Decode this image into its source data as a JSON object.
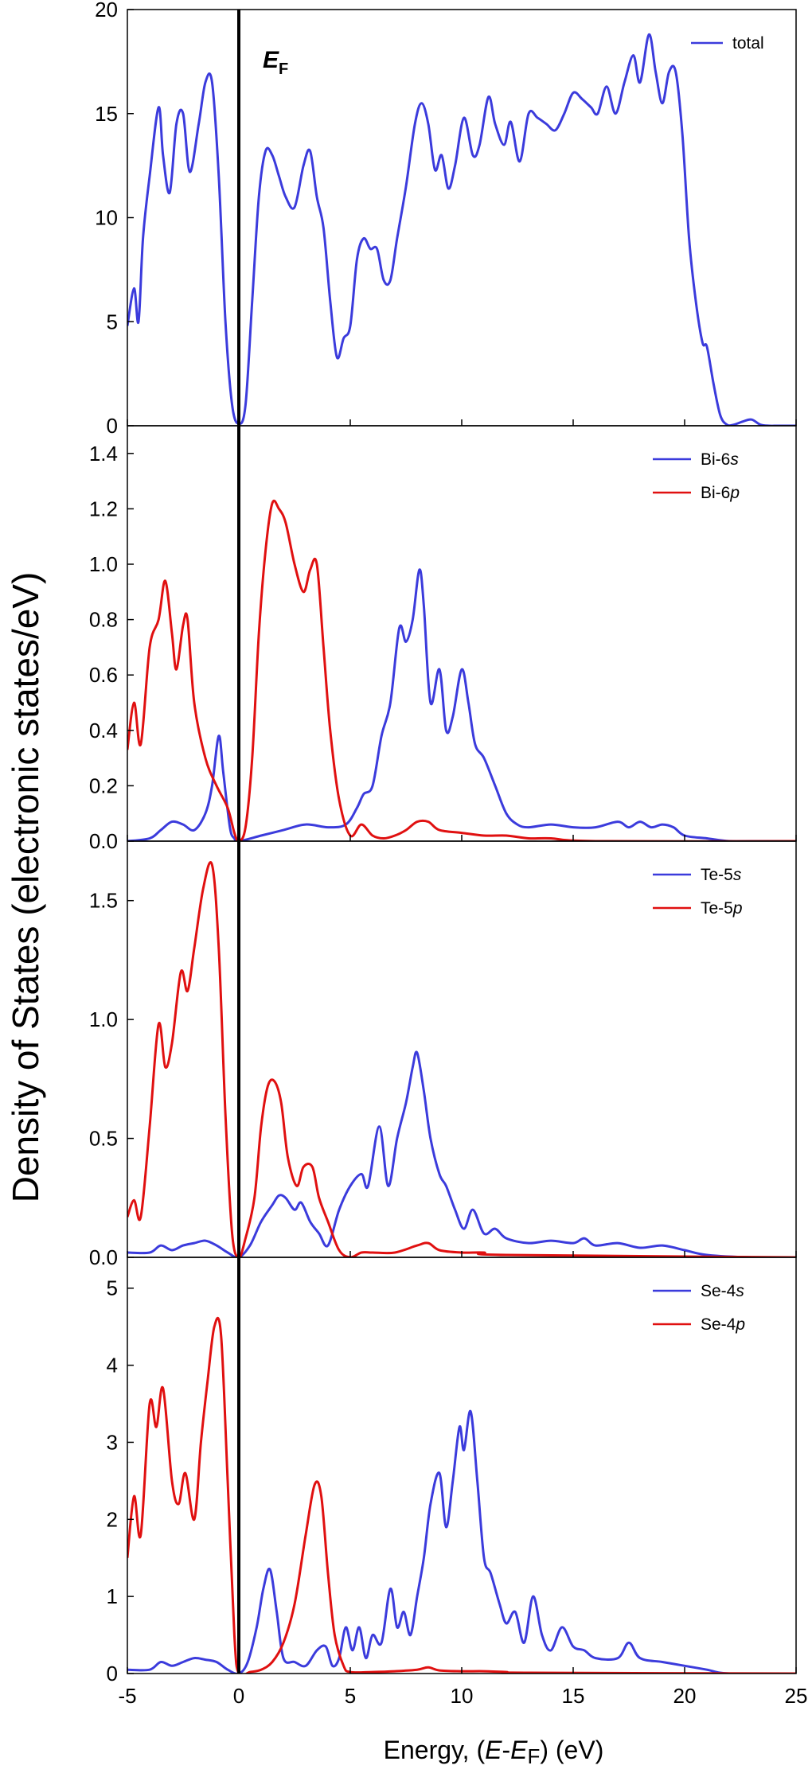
{
  "figure": {
    "ylabel": "Density of States (electronic states/eV)",
    "xlabel_parts": [
      "Energy, (",
      "E",
      "-",
      "E",
      "F",
      ") (eV)"
    ],
    "fermi_label": [
      "E",
      "F"
    ],
    "x_ticks": [
      "-5",
      "0",
      "5",
      "10",
      "15",
      "20",
      "25"
    ],
    "colors": {
      "blue": "#3b3bdc",
      "red": "#e01010",
      "axis": "#000000"
    }
  },
  "chart_data": [
    {
      "type": "line",
      "panel": "total",
      "xlim": [
        -5,
        25
      ],
      "ylim": [
        0,
        20
      ],
      "y_ticks": [
        "0",
        "5",
        "10",
        "15",
        "20"
      ],
      "legend_placement": "top-right",
      "series": [
        {
          "name": "total",
          "legend_label": [
            "total"
          ],
          "color": "#3b3bdc",
          "x": [
            -5,
            -4.7,
            -4.5,
            -4.3,
            -4,
            -3.6,
            -3.4,
            -3.1,
            -2.8,
            -2.5,
            -2.2,
            -1.8,
            -1.5,
            -1.2,
            -0.9,
            -0.6,
            -0.3,
            0,
            0.3,
            0.6,
            0.9,
            1.2,
            1.5,
            1.8,
            2.1,
            2.5,
            2.9,
            3.2,
            3.5,
            3.8,
            4.1,
            4.4,
            4.7,
            5,
            5.3,
            5.6,
            5.9,
            6.2,
            6.5,
            6.8,
            7.1,
            7.5,
            7.9,
            8.2,
            8.5,
            8.8,
            9.1,
            9.4,
            9.7,
            10.1,
            10.5,
            10.8,
            11.2,
            11.5,
            11.9,
            12.2,
            12.6,
            13,
            13.4,
            13.8,
            14.2,
            14.6,
            15,
            15.4,
            15.8,
            16.1,
            16.5,
            16.9,
            17.3,
            17.7,
            18,
            18.4,
            18.7,
            19,
            19.3,
            19.6,
            19.9,
            20.2,
            20.5,
            20.8,
            21,
            21.3,
            21.6,
            21.9,
            22.2,
            22.6,
            23,
            23.4,
            23.8,
            24.2,
            25
          ],
          "values": [
            4.8,
            6.6,
            5,
            9,
            12,
            15.3,
            13,
            11.2,
            14.5,
            15,
            12.2,
            14.5,
            16.5,
            16.5,
            12,
            5,
            1,
            0.1,
            1,
            6,
            11,
            13.2,
            13,
            12,
            11,
            10.5,
            12.5,
            13.2,
            11,
            9.5,
            6,
            3.3,
            4.2,
            4.8,
            8,
            9,
            8.5,
            8.5,
            7,
            7,
            9,
            11.5,
            14.5,
            15.5,
            14.5,
            12.3,
            13,
            11.4,
            12.5,
            14.8,
            13,
            13.5,
            15.8,
            14.5,
            13.5,
            14.6,
            12.7,
            15,
            14.8,
            14.5,
            14.2,
            15,
            16,
            15.7,
            15.3,
            15,
            16.3,
            15,
            16.5,
            17.8,
            16.5,
            18.8,
            17,
            15.5,
            17,
            17,
            14,
            9,
            6,
            4,
            3.8,
            2,
            0.5,
            0.05,
            0.05,
            0.2,
            0.3,
            0.05,
            0,
            0,
            0
          ]
        }
      ]
    },
    {
      "type": "line",
      "panel": "Bi",
      "xlim": [
        -5,
        25
      ],
      "ylim": [
        0,
        1.5
      ],
      "y_ticks": [
        "0.0",
        "0.2",
        "0.4",
        "0.6",
        "0.8",
        "1.0",
        "1.2",
        "1.4"
      ],
      "legend_placement": "top-right",
      "series": [
        {
          "name": "Bi-6s",
          "legend_label": [
            "Bi-6",
            "s"
          ],
          "color": "#3b3bdc",
          "x": [
            -5,
            -4,
            -3.5,
            -3,
            -2.5,
            -2,
            -1.5,
            -1.2,
            -0.9,
            -0.7,
            -0.4,
            -0.2,
            0,
            1,
            2,
            3,
            4,
            4.8,
            5.3,
            5.6,
            6,
            6.4,
            6.8,
            7.2,
            7.5,
            7.8,
            8.1,
            8.3,
            8.6,
            9,
            9.3,
            9.6,
            10,
            10.3,
            10.6,
            11,
            11.5,
            12,
            12.5,
            13,
            14,
            15,
            16,
            17,
            17.5,
            18,
            18.5,
            19,
            19.5,
            20,
            21,
            22,
            23,
            25
          ],
          "values": [
            0,
            0.01,
            0.04,
            0.07,
            0.06,
            0.04,
            0.1,
            0.2,
            0.38,
            0.25,
            0.05,
            0.01,
            0,
            0.02,
            0.04,
            0.06,
            0.05,
            0.06,
            0.12,
            0.17,
            0.2,
            0.38,
            0.5,
            0.77,
            0.72,
            0.8,
            0.98,
            0.85,
            0.5,
            0.62,
            0.4,
            0.45,
            0.62,
            0.5,
            0.35,
            0.3,
            0.2,
            0.1,
            0.06,
            0.05,
            0.06,
            0.05,
            0.05,
            0.07,
            0.05,
            0.07,
            0.05,
            0.06,
            0.05,
            0.02,
            0.01,
            0,
            0,
            0
          ]
        },
        {
          "name": "Bi-6p",
          "legend_label": [
            "Bi-6",
            "p"
          ],
          "color": "#e01010",
          "x": [
            -5,
            -4.7,
            -4.4,
            -4,
            -3.6,
            -3.3,
            -3,
            -2.8,
            -2.5,
            -2.3,
            -2,
            -1.5,
            -1,
            -0.5,
            -0.2,
            0,
            0.3,
            0.6,
            0.9,
            1.2,
            1.5,
            1.8,
            2.1,
            2.5,
            2.9,
            3.2,
            3.5,
            3.8,
            4.1,
            4.5,
            5,
            5.5,
            6,
            6.5,
            7,
            7.5,
            8,
            8.5,
            9,
            10,
            11,
            12,
            13,
            14,
            16,
            25
          ],
          "values": [
            0.33,
            0.5,
            0.35,
            0.7,
            0.8,
            0.94,
            0.75,
            0.62,
            0.78,
            0.8,
            0.5,
            0.3,
            0.2,
            0.12,
            0.03,
            0,
            0.05,
            0.3,
            0.75,
            1.05,
            1.22,
            1.2,
            1.15,
            1,
            0.9,
            0.98,
            1.0,
            0.7,
            0.4,
            0.15,
            0.02,
            0.06,
            0.02,
            0.01,
            0.02,
            0.04,
            0.07,
            0.07,
            0.04,
            0.03,
            0.02,
            0.02,
            0.01,
            0.01,
            0,
            0
          ]
        }
      ]
    },
    {
      "type": "line",
      "panel": "Te",
      "xlim": [
        -5,
        25
      ],
      "ylim": [
        0,
        1.75
      ],
      "y_ticks": [
        "0.0",
        "0.5",
        "1.0",
        "1.5"
      ],
      "legend_placement": "top-right",
      "series": [
        {
          "name": "Te-5s",
          "legend_label": [
            "Te-5",
            "s"
          ],
          "color": "#3b3bdc",
          "x": [
            -5,
            -4,
            -3.5,
            -3,
            -2.5,
            -2,
            -1.5,
            -1,
            -0.5,
            0,
            0.5,
            1,
            1.5,
            1.8,
            2.1,
            2.5,
            2.8,
            3.2,
            3.6,
            4,
            4.5,
            5,
            5.5,
            5.8,
            6.3,
            6.7,
            7.1,
            7.5,
            7.8,
            8,
            8.3,
            8.6,
            9,
            9.3,
            9.7,
            10.1,
            10.5,
            11,
            11.5,
            12,
            13,
            14,
            15,
            15.5,
            16,
            17,
            18,
            19,
            20,
            21,
            23,
            25
          ],
          "values": [
            0.02,
            0.02,
            0.05,
            0.03,
            0.05,
            0.06,
            0.07,
            0.05,
            0.02,
            0,
            0.05,
            0.15,
            0.22,
            0.26,
            0.25,
            0.2,
            0.23,
            0.15,
            0.1,
            0.05,
            0.2,
            0.3,
            0.35,
            0.3,
            0.55,
            0.3,
            0.5,
            0.65,
            0.8,
            0.86,
            0.7,
            0.5,
            0.35,
            0.3,
            0.2,
            0.12,
            0.2,
            0.1,
            0.12,
            0.08,
            0.06,
            0.07,
            0.06,
            0.08,
            0.05,
            0.06,
            0.04,
            0.05,
            0.03,
            0.01,
            0,
            0
          ]
        },
        {
          "name": "Te-5p",
          "legend_label": [
            "Te-5",
            "p"
          ],
          "color": "#e01010",
          "x": [
            -5,
            -4.7,
            -4.4,
            -4,
            -3.6,
            -3.3,
            -3,
            -2.6,
            -2.3,
            -2,
            -1.6,
            -1.2,
            -0.9,
            -0.6,
            -0.3,
            0,
            0.3,
            0.7,
            1,
            1.3,
            1.6,
            1.9,
            2.2,
            2.6,
            2.9,
            3.3,
            3.6,
            4,
            4.5,
            5,
            5.5,
            6,
            7,
            8,
            8.5,
            9,
            10,
            11,
            12,
            25
          ],
          "values": [
            0.17,
            0.24,
            0.17,
            0.55,
            0.98,
            0.8,
            0.9,
            1.2,
            1.12,
            1.3,
            1.55,
            1.65,
            1.3,
            0.6,
            0.1,
            0,
            0.08,
            0.25,
            0.55,
            0.72,
            0.74,
            0.65,
            0.42,
            0.3,
            0.38,
            0.38,
            0.25,
            0.15,
            0.03,
            0,
            0.02,
            0.02,
            0.02,
            0.05,
            0.06,
            0.03,
            0.02,
            0.02,
            0.01,
            0
          ]
        }
      ]
    },
    {
      "type": "line",
      "panel": "Se",
      "xlim": [
        -5,
        25
      ],
      "ylim": [
        0,
        5.4
      ],
      "y_ticks": [
        "0",
        "1",
        "2",
        "3",
        "4",
        "5"
      ],
      "legend_placement": "top-right",
      "series": [
        {
          "name": "Se-4s",
          "legend_label": [
            "Se-4",
            "s"
          ],
          "color": "#3b3bdc",
          "x": [
            -5,
            -4,
            -3.5,
            -3,
            -2.5,
            -2,
            -1.5,
            -1,
            -0.5,
            0,
            0.4,
            0.8,
            1.1,
            1.4,
            1.7,
            2,
            2.5,
            3,
            3.5,
            3.9,
            4.2,
            4.5,
            4.8,
            5.1,
            5.4,
            5.7,
            6,
            6.4,
            6.8,
            7.1,
            7.4,
            7.7,
            8,
            8.3,
            8.6,
            9,
            9.3,
            9.6,
            9.9,
            10.1,
            10.4,
            10.7,
            11,
            11.3,
            11.7,
            12,
            12.4,
            12.8,
            13.2,
            13.6,
            14,
            14.5,
            15,
            15.5,
            16,
            17,
            17.5,
            18,
            19,
            20,
            21,
            22,
            25
          ],
          "values": [
            0.05,
            0.05,
            0.15,
            0.1,
            0.15,
            0.2,
            0.18,
            0.15,
            0.05,
            0,
            0.15,
            0.6,
            1.1,
            1.35,
            0.8,
            0.2,
            0.15,
            0.1,
            0.3,
            0.35,
            0.1,
            0.2,
            0.6,
            0.3,
            0.6,
            0.2,
            0.5,
            0.4,
            1.1,
            0.6,
            0.8,
            0.5,
            1.0,
            1.5,
            2.2,
            2.6,
            1.9,
            2.5,
            3.2,
            2.9,
            3.4,
            2.5,
            1.5,
            1.3,
            0.9,
            0.65,
            0.8,
            0.4,
            1.0,
            0.5,
            0.3,
            0.6,
            0.35,
            0.3,
            0.2,
            0.2,
            0.4,
            0.2,
            0.15,
            0.1,
            0.05,
            0,
            0
          ]
        },
        {
          "name": "Se-4p",
          "legend_label": [
            "Se-4",
            "p"
          ],
          "color": "#e01010",
          "x": [
            -5,
            -4.7,
            -4.4,
            -4,
            -3.7,
            -3.4,
            -3,
            -2.7,
            -2.4,
            -2,
            -1.7,
            -1.4,
            -1.1,
            -0.8,
            -0.5,
            -0.2,
            0,
            0.5,
            1,
            1.5,
            2,
            2.5,
            3,
            3.4,
            3.7,
            4,
            4.3,
            4.7,
            5,
            6,
            7,
            8,
            8.5,
            9,
            10,
            11,
            12,
            13,
            25
          ],
          "values": [
            1.5,
            2.3,
            1.8,
            3.5,
            3.2,
            3.7,
            2.5,
            2.2,
            2.6,
            2,
            3,
            3.8,
            4.5,
            4.4,
            2.5,
            0.5,
            0,
            0.02,
            0.05,
            0.15,
            0.4,
            0.9,
            1.8,
            2.45,
            2.3,
            1.3,
            0.5,
            0.1,
            0.02,
            0.02,
            0.03,
            0.05,
            0.08,
            0.04,
            0.03,
            0.03,
            0.02,
            0.01,
            0
          ]
        }
      ]
    }
  ]
}
